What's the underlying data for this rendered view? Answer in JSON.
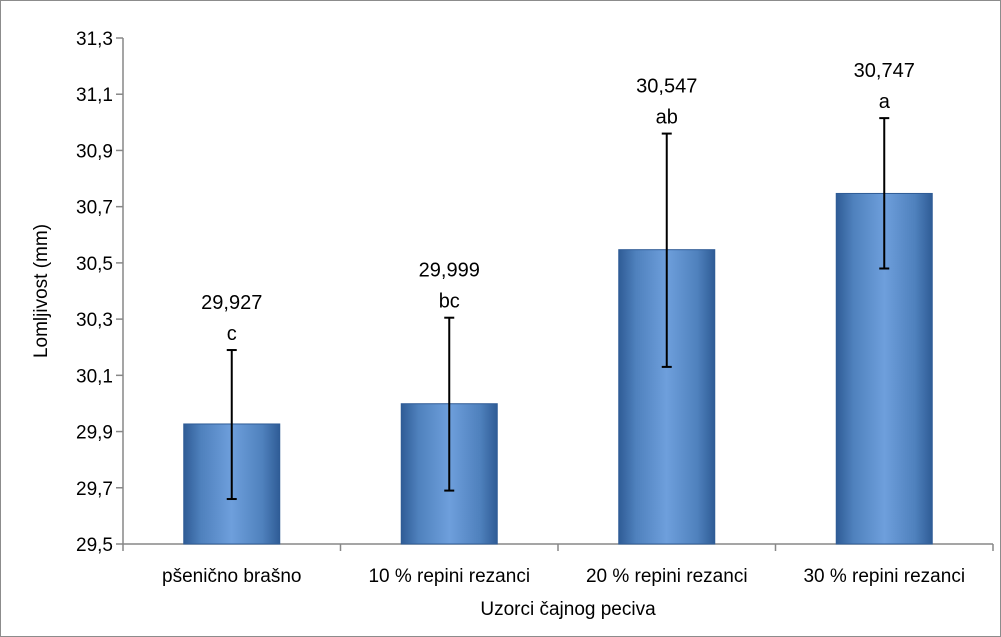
{
  "chart_data": {
    "type": "bar",
    "categories": [
      "pšenično brašno",
      "10 % repini rezanci",
      "20 % repini rezanci",
      "30 % repini rezanci"
    ],
    "values": [
      29.927,
      29.999,
      30.547,
      30.747
    ],
    "error_low": [
      29.66,
      29.69,
      30.13,
      30.48
    ],
    "error_high": [
      30.19,
      30.305,
      30.96,
      31.015
    ],
    "value_labels": [
      "29,927",
      "29,999",
      "30,547",
      "30,747"
    ],
    "group_letters": [
      "c",
      "bc",
      "ab",
      "a"
    ],
    "xlabel": "Uzorci čajnog peciva",
    "ylabel": "Lomljivost (mm)",
    "ylim": [
      29.5,
      31.3
    ],
    "yticks": [
      29.5,
      29.7,
      29.9,
      30.1,
      30.3,
      30.5,
      30.7,
      30.9,
      31.1,
      31.3
    ],
    "ytick_labels": [
      "29,5",
      "29,7",
      "29,9",
      "30,1",
      "30,3",
      "30,5",
      "30,7",
      "30,9",
      "31,1",
      "31,3"
    ],
    "grid": false,
    "legend": "none",
    "colors": {
      "bar_fill": "#4f81bd",
      "bar_light": "#6e9fdc",
      "bar_dark": "#2f5c96",
      "axis": "#878787",
      "error_bar": "#000000"
    }
  }
}
